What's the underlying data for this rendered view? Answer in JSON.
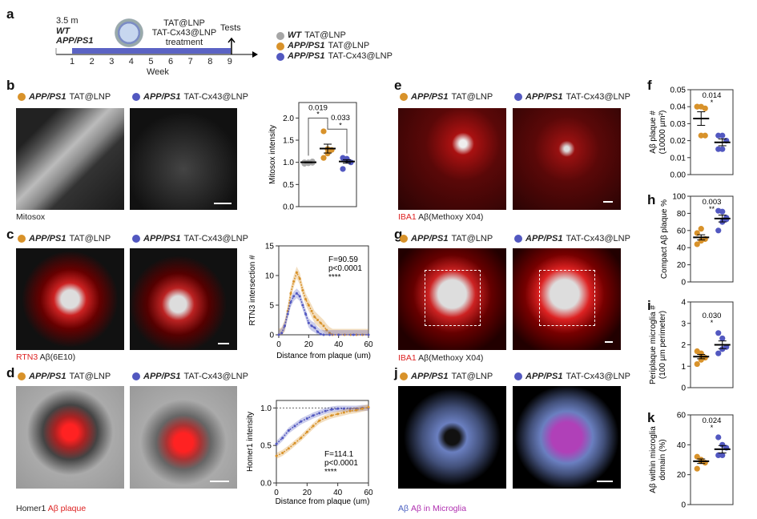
{
  "panel_labels": [
    "a",
    "b",
    "c",
    "d",
    "e",
    "f",
    "g",
    "h",
    "i",
    "j",
    "k"
  ],
  "timeline": {
    "age": "3.5 m",
    "genotype_1": "WT",
    "genotype_2": "APP/PS1",
    "treatment_1": "TAT@LNP",
    "treatment_2": "TAT-Cx43@LNP",
    "treatment_3": "treatment",
    "tests": "Tests",
    "weeks": [
      "1",
      "2",
      "3",
      "4",
      "5",
      "6",
      "7",
      "8",
      "9"
    ],
    "xlabel": "Week",
    "bar_color": "#5b63c4"
  },
  "legend": [
    {
      "genotype": "WT",
      "treatment": "TAT@LNP",
      "color": "#a6a6a6"
    },
    {
      "genotype": "APP/PS1",
      "treatment": "TAT@LNP",
      "color": "#d8922a"
    },
    {
      "genotype": "APP/PS1",
      "treatment": "TAT-Cx43@LNP",
      "color": "#5258c0"
    }
  ],
  "groups": {
    "g1": "APP/PS1",
    "t1": "TAT@LNP",
    "g2": "APP/PS1",
    "t2": "TAT-Cx43@LNP"
  },
  "captions": {
    "b": "Mitosox",
    "c": {
      "a": "RTN3",
      "b": "Aβ(6E10)"
    },
    "d": {
      "a": "Homer1",
      "b": "Aβ plaque"
    },
    "e": {
      "a": "IBA1",
      "b": "Aβ(Methoxy X04)"
    },
    "g": {
      "a": "IBA1",
      "b": "Aβ(Methoxy X04)"
    },
    "j": {
      "a": "Aβ",
      "b": "Aβ in Microglia"
    }
  },
  "chart_data": [
    {
      "id": "b",
      "type": "scatter",
      "ylabel": "Mitosox intensity",
      "ylim": [
        0,
        2.35
      ],
      "yticks": [
        "0.0",
        "0.5",
        "1.0",
        "1.5",
        "2.0"
      ],
      "groups": [
        {
          "color": "#a6a6a6",
          "values": [
            1.0,
            0.98,
            1.02,
            0.97,
            1.0,
            0.99
          ],
          "mean": 1.0,
          "sem": 0.01
        },
        {
          "color": "#d8922a",
          "values": [
            1.7,
            1.3,
            1.28,
            1.1,
            1.2
          ],
          "mean": 1.31,
          "sem": 0.1
        },
        {
          "color": "#5258c0",
          "values": [
            1.1,
            1.05,
            1.0,
            0.85,
            1.08
          ],
          "mean": 1.02,
          "sem": 0.04
        }
      ],
      "comparisons": [
        {
          "from": 0,
          "to": 1,
          "p": "0.019",
          "stars": "*"
        },
        {
          "from": 1,
          "to": 2,
          "p": "0.033",
          "stars": "*"
        }
      ]
    },
    {
      "id": "c",
      "type": "line",
      "ylabel": "RTN3 intersection #",
      "xlabel": "Distance from plaque (um)",
      "xlim": [
        0,
        60
      ],
      "ylim": [
        0,
        15
      ],
      "xticks": [
        "0",
        "20",
        "40",
        "60"
      ],
      "yticks": [
        "0",
        "5",
        "10",
        "15"
      ],
      "stats": [
        "F=90.59",
        "p<0.0001",
        "****"
      ],
      "series": [
        {
          "color": "#d8922a",
          "x": [
            0,
            2,
            4,
            6,
            8,
            10,
            12,
            14,
            16,
            18,
            20,
            22,
            24,
            26,
            28,
            30,
            32,
            34,
            36,
            40,
            44,
            48,
            52,
            56,
            60
          ],
          "y": [
            0,
            0.3,
            1.5,
            4,
            7,
            9,
            10.5,
            9.5,
            7.5,
            6,
            5,
            4,
            3,
            2.5,
            2,
            1.5,
            0.8,
            0.3,
            0,
            0,
            0,
            0,
            0,
            0,
            0
          ],
          "band": 1
        },
        {
          "color": "#5258c0",
          "x": [
            0,
            2,
            4,
            6,
            8,
            10,
            12,
            14,
            16,
            18,
            20,
            22,
            24,
            26,
            28,
            30,
            34,
            40,
            50,
            60
          ],
          "y": [
            0,
            0.3,
            1.5,
            3.5,
            5.5,
            6.5,
            7,
            6.5,
            5,
            3.5,
            2,
            1.5,
            1.2,
            0.5,
            0.1,
            0,
            0,
            0,
            0,
            0
          ],
          "band": 0.8
        }
      ]
    },
    {
      "id": "d",
      "type": "line",
      "ylabel": "Homer1 intensity",
      "xlabel": "Distance from plaque (um)",
      "xlim": [
        0,
        60
      ],
      "ylim": [
        0,
        1.1
      ],
      "xticks": [
        "0",
        "20",
        "40",
        "60"
      ],
      "yticks": [
        "0.0",
        "0.5",
        "1.0"
      ],
      "stats": [
        "F=114.1",
        "p<0.0001",
        "****"
      ],
      "reference_line": 1.0,
      "series": [
        {
          "color": "#5258c0",
          "x": [
            0,
            4,
            8,
            12,
            16,
            20,
            24,
            28,
            32,
            36,
            40,
            44,
            48,
            52,
            56,
            60
          ],
          "y": [
            0.52,
            0.6,
            0.7,
            0.76,
            0.82,
            0.86,
            0.9,
            0.93,
            0.96,
            0.98,
            0.99,
            0.99,
            0.99,
            0.99,
            1.0,
            1.0
          ],
          "band": 0.04
        },
        {
          "color": "#d8922a",
          "x": [
            0,
            4,
            8,
            12,
            16,
            20,
            24,
            28,
            32,
            36,
            40,
            44,
            48,
            52,
            56,
            60
          ],
          "y": [
            0.36,
            0.4,
            0.46,
            0.53,
            0.6,
            0.68,
            0.76,
            0.83,
            0.87,
            0.9,
            0.92,
            0.94,
            0.96,
            0.97,
            0.99,
            1.01
          ],
          "band": 0.04
        }
      ]
    },
    {
      "id": "f",
      "type": "scatter",
      "ylabel": "Aβ plaque #",
      "ylabel2": "(10000 µm²)",
      "ylim": [
        0,
        0.05
      ],
      "yticks": [
        "0.00",
        "0.01",
        "0.02",
        "0.03",
        "0.04",
        "0.05"
      ],
      "groups": [
        {
          "color": "#d8922a",
          "values": [
            0.04,
            0.04,
            0.039,
            0.04,
            0.023,
            0.023
          ],
          "mean": 0.033,
          "sem": 0.004
        },
        {
          "color": "#5258c0",
          "values": [
            0.023,
            0.023,
            0.02,
            0.015,
            0.015
          ],
          "mean": 0.019,
          "sem": 0.002
        }
      ],
      "comparisons": [
        {
          "p": "0.014",
          "stars": "*"
        }
      ]
    },
    {
      "id": "h",
      "type": "scatter",
      "ylabel": "Compact Aβ plaque %",
      "ylim": [
        0,
        100
      ],
      "yticks": [
        "0",
        "20",
        "40",
        "60",
        "80",
        "100"
      ],
      "groups": [
        {
          "color": "#d8922a",
          "values": [
            57,
            62,
            50,
            44,
            48
          ],
          "mean": 52,
          "sem": 3
        },
        {
          "color": "#5258c0",
          "values": [
            83,
            82,
            75,
            60,
            70,
            73
          ],
          "mean": 74,
          "sem": 4
        }
      ],
      "comparisons": [
        {
          "p": "0.003",
          "stars": "**"
        }
      ]
    },
    {
      "id": "i",
      "type": "scatter",
      "ylabel": "Periplaque microglia #",
      "ylabel2": "(100 µm perimeter)",
      "ylim": [
        0,
        4
      ],
      "yticks": [
        "0",
        "1",
        "2",
        "3",
        "4"
      ],
      "groups": [
        {
          "color": "#d8922a",
          "values": [
            1.7,
            1.6,
            1.4,
            1.1,
            1.3
          ],
          "mean": 1.45,
          "sem": 0.1
        },
        {
          "color": "#5258c0",
          "values": [
            2.55,
            2.3,
            1.9,
            1.6,
            1.8
          ],
          "mean": 2.0,
          "sem": 0.18
        }
      ],
      "comparisons": [
        {
          "p": "0.030",
          "stars": "*"
        }
      ]
    },
    {
      "id": "k",
      "type": "scatter",
      "ylabel": "Aβ within microglia",
      "ylabel2": "domain (%)",
      "ylim": [
        0,
        60
      ],
      "yticks": [
        "0",
        "20",
        "40",
        "60"
      ],
      "groups": [
        {
          "color": "#d8922a",
          "values": [
            32,
            30,
            28,
            24,
            29
          ],
          "mean": 29,
          "sem": 1.5
        },
        {
          "color": "#5258c0",
          "values": [
            45,
            40,
            38,
            33,
            33
          ],
          "mean": 37,
          "sem": 2.5
        }
      ],
      "comparisons": [
        {
          "p": "0.024",
          "stars": "*"
        }
      ]
    }
  ]
}
